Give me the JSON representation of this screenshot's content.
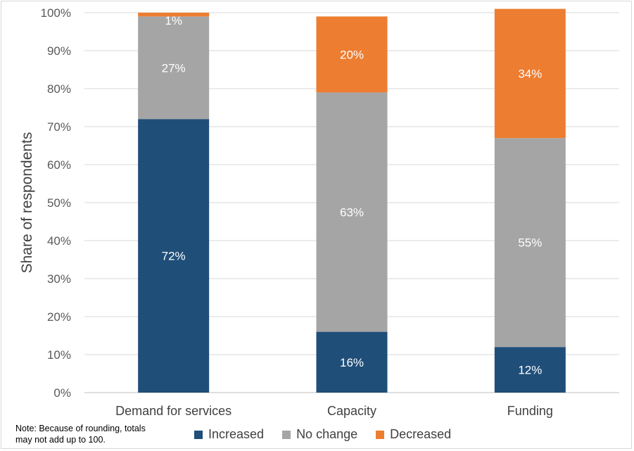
{
  "chart_data": {
    "type": "bar",
    "stacked": true,
    "title": "",
    "ylabel": "Share of respondents",
    "xlabel": "",
    "ylim": [
      0,
      100
    ],
    "ytick_step": 10,
    "ytick_suffix": "%",
    "categories": [
      "Demand for services",
      "Capacity",
      "Funding"
    ],
    "series": [
      {
        "name": "Increased",
        "color": "#1f4e79",
        "values": [
          72,
          16,
          12
        ],
        "labels": [
          "72%",
          "16%",
          "12%"
        ]
      },
      {
        "name": "No change",
        "color": "#a5a5a5",
        "values": [
          27,
          63,
          55
        ],
        "labels": [
          "27%",
          "63%",
          "55%"
        ]
      },
      {
        "name": "Decreased",
        "color": "#ed7d31",
        "values": [
          1,
          20,
          34
        ],
        "labels": [
          "1%",
          "20%",
          "34%"
        ]
      }
    ],
    "legend_position": "bottom"
  },
  "note": {
    "line1": "Note: Because of rounding, totals",
    "line2": "may not add up to 100."
  }
}
